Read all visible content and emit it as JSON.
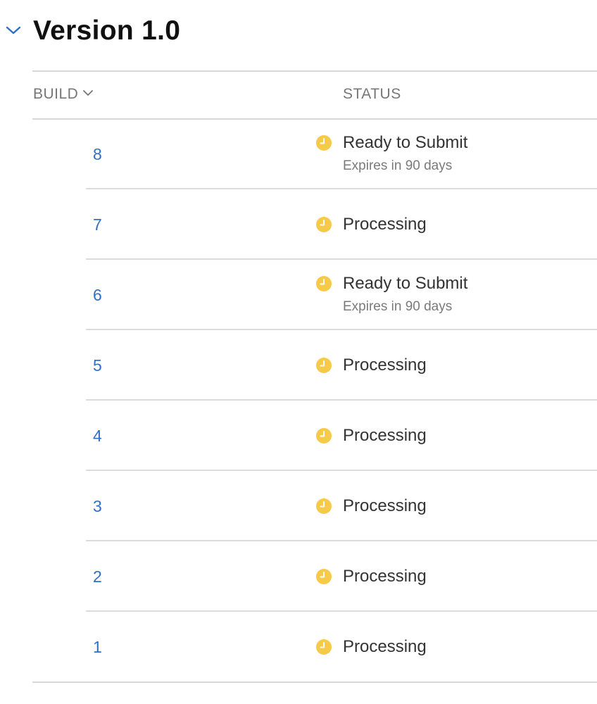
{
  "version": {
    "title": "Version 1.0"
  },
  "table": {
    "headers": {
      "build": "BUILD",
      "status": "STATUS"
    },
    "rows": [
      {
        "build": "8",
        "status": "Ready to Submit",
        "detail": "Expires in 90 days"
      },
      {
        "build": "7",
        "status": "Processing"
      },
      {
        "build": "6",
        "status": "Ready to Submit",
        "detail": "Expires in 90 days"
      },
      {
        "build": "5",
        "status": "Processing"
      },
      {
        "build": "4",
        "status": "Processing"
      },
      {
        "build": "3",
        "status": "Processing"
      },
      {
        "build": "2",
        "status": "Processing"
      },
      {
        "build": "1",
        "status": "Processing"
      }
    ]
  },
  "colors": {
    "accent": "#2f6fc6",
    "status_icon": "#f7c948"
  },
  "icons": {
    "collapse": "chevron-down-icon",
    "sort": "chevron-down-icon",
    "status": "clock-icon"
  }
}
